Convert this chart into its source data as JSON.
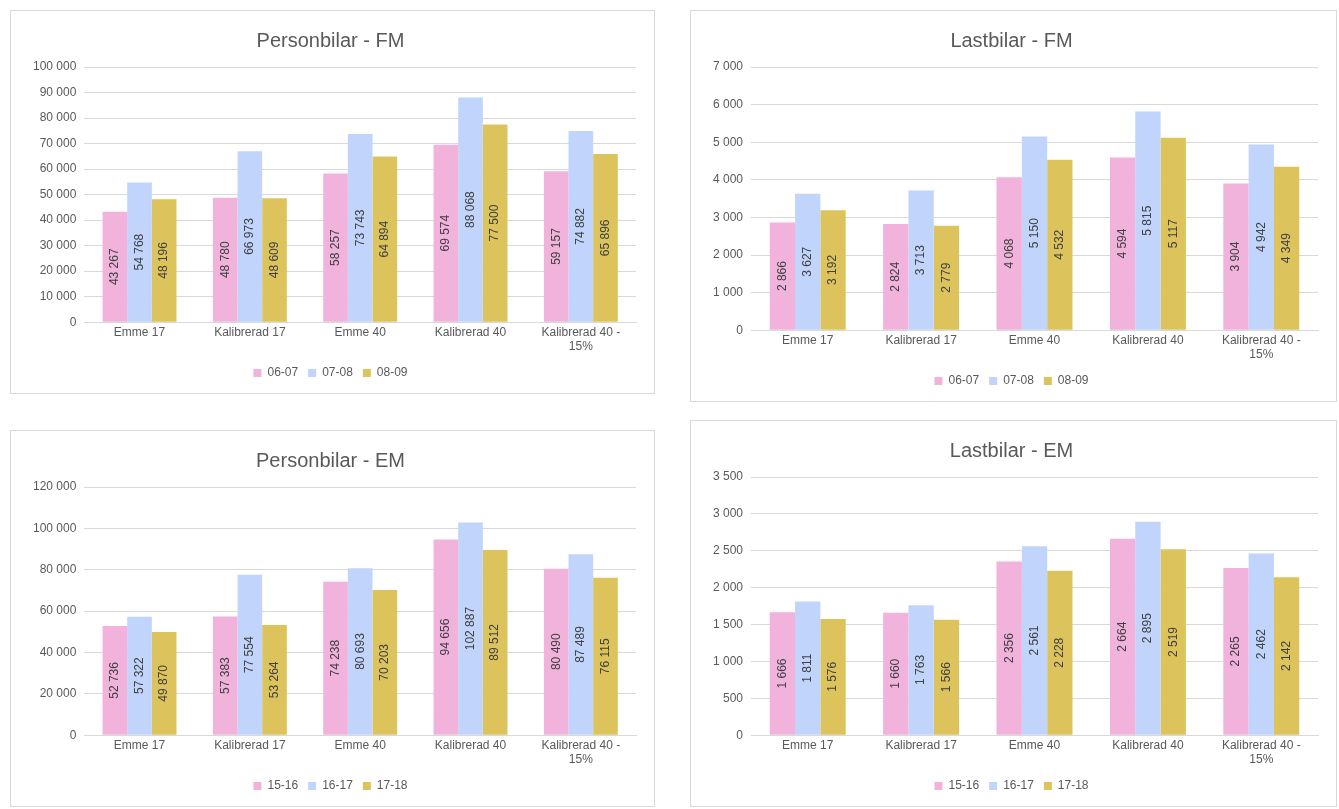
{
  "chart_data": [
    {
      "type": "bar",
      "title": "Personbilar - FM",
      "categories": [
        "Emme 17",
        "Kalibrerad 17",
        "Emme 40",
        "Kalibrerad 40",
        "Kalibrerad 40 - 15%"
      ],
      "series": [
        {
          "name": "06-07",
          "color": "#f1b2dc",
          "values": [
            43267,
            48780,
            58257,
            69574,
            59157
          ]
        },
        {
          "name": "07-08",
          "color": "#c0d4fc",
          "values": [
            54768,
            66973,
            73743,
            88068,
            74882
          ]
        },
        {
          "name": "08-09",
          "color": "#dcc35c",
          "values": [
            48196,
            48609,
            64894,
            77500,
            65896
          ]
        }
      ],
      "ylim": [
        0,
        100000
      ],
      "yticks": [
        {
          "value": 0,
          "label": "0"
        },
        {
          "value": 10000,
          "label": "10 000"
        },
        {
          "value": 20000,
          "label": "20 000"
        },
        {
          "value": 30000,
          "label": "30 000"
        },
        {
          "value": 40000,
          "label": "40 000"
        },
        {
          "value": 50000,
          "label": "50 000"
        },
        {
          "value": 60000,
          "label": "60 000"
        },
        {
          "value": 70000,
          "label": "70 000"
        },
        {
          "value": 80000,
          "label": "80 000"
        },
        {
          "value": 90000,
          "label": "90 000"
        },
        {
          "value": 100000,
          "label": "100 000"
        }
      ],
      "grid": "y",
      "legend": "bottom",
      "data_labels": true
    },
    {
      "type": "bar",
      "title": "Lastbilar - FM",
      "categories": [
        "Emme 17",
        "Kalibrerad 17",
        "Emme 40",
        "Kalibrerad 40",
        "Kalibrerad 40 - 15%"
      ],
      "series": [
        {
          "name": "06-07",
          "color": "#f1b2dc",
          "values": [
            2866,
            2824,
            4068,
            4594,
            3904
          ]
        },
        {
          "name": "07-08",
          "color": "#c0d4fc",
          "values": [
            3627,
            3713,
            5150,
            5815,
            4942
          ]
        },
        {
          "name": "08-09",
          "color": "#dcc35c",
          "values": [
            3192,
            2779,
            4532,
            5117,
            4349
          ]
        }
      ],
      "ylim": [
        0,
        7000
      ],
      "yticks": [
        {
          "value": 0,
          "label": "0"
        },
        {
          "value": 1000,
          "label": "1 000"
        },
        {
          "value": 2000,
          "label": "2 000"
        },
        {
          "value": 3000,
          "label": "3 000"
        },
        {
          "value": 4000,
          "label": "4 000"
        },
        {
          "value": 5000,
          "label": "5 000"
        },
        {
          "value": 6000,
          "label": "6 000"
        },
        {
          "value": 7000,
          "label": "7 000"
        }
      ],
      "grid": "y",
      "legend": "bottom",
      "data_labels": true
    },
    {
      "type": "bar",
      "title": "Personbilar - EM",
      "categories": [
        "Emme 17",
        "Kalibrerad 17",
        "Emme 40",
        "Kalibrerad 40",
        "Kalibrerad 40 - 15%"
      ],
      "series": [
        {
          "name": "15-16",
          "color": "#f1b2dc",
          "values": [
            52736,
            57383,
            74238,
            94656,
            80490
          ]
        },
        {
          "name": "16-17",
          "color": "#c0d4fc",
          "values": [
            57322,
            77554,
            80693,
            102887,
            87489
          ]
        },
        {
          "name": "17-18",
          "color": "#dcc35c",
          "values": [
            49870,
            53264,
            70203,
            89512,
            76115
          ]
        }
      ],
      "ylim": [
        0,
        120000
      ],
      "yticks": [
        {
          "value": 0,
          "label": "0"
        },
        {
          "value": 20000,
          "label": "20 000"
        },
        {
          "value": 40000,
          "label": "40 000"
        },
        {
          "value": 60000,
          "label": "60 000"
        },
        {
          "value": 80000,
          "label": "80 000"
        },
        {
          "value": 100000,
          "label": "100 000"
        },
        {
          "value": 120000,
          "label": "120 000"
        }
      ],
      "grid": "y",
      "legend": "bottom",
      "data_labels": true
    },
    {
      "type": "bar",
      "title": "Lastbilar - EM",
      "categories": [
        "Emme 17",
        "Kalibrerad 17",
        "Emme 40",
        "Kalibrerad 40",
        "Kalibrerad 40 - 15%"
      ],
      "series": [
        {
          "name": "15-16",
          "color": "#f1b2dc",
          "values": [
            1666,
            1660,
            2356,
            2664,
            2265
          ]
        },
        {
          "name": "16-17",
          "color": "#c0d4fc",
          "values": [
            1811,
            1763,
            2561,
            2895,
            2462
          ]
        },
        {
          "name": "17-18",
          "color": "#dcc35c",
          "values": [
            1576,
            1566,
            2228,
            2519,
            2142
          ]
        }
      ],
      "ylim": [
        0,
        3500
      ],
      "yticks": [
        {
          "value": 0,
          "label": "0"
        },
        {
          "value": 500,
          "label": "500"
        },
        {
          "value": 1000,
          "label": "1 000"
        },
        {
          "value": 1500,
          "label": "1 500"
        },
        {
          "value": 2000,
          "label": "2 000"
        },
        {
          "value": 2500,
          "label": "2 500"
        },
        {
          "value": 3000,
          "label": "3 000"
        },
        {
          "value": 3500,
          "label": "3 500"
        }
      ],
      "grid": "y",
      "legend": "bottom",
      "data_labels": true
    }
  ]
}
